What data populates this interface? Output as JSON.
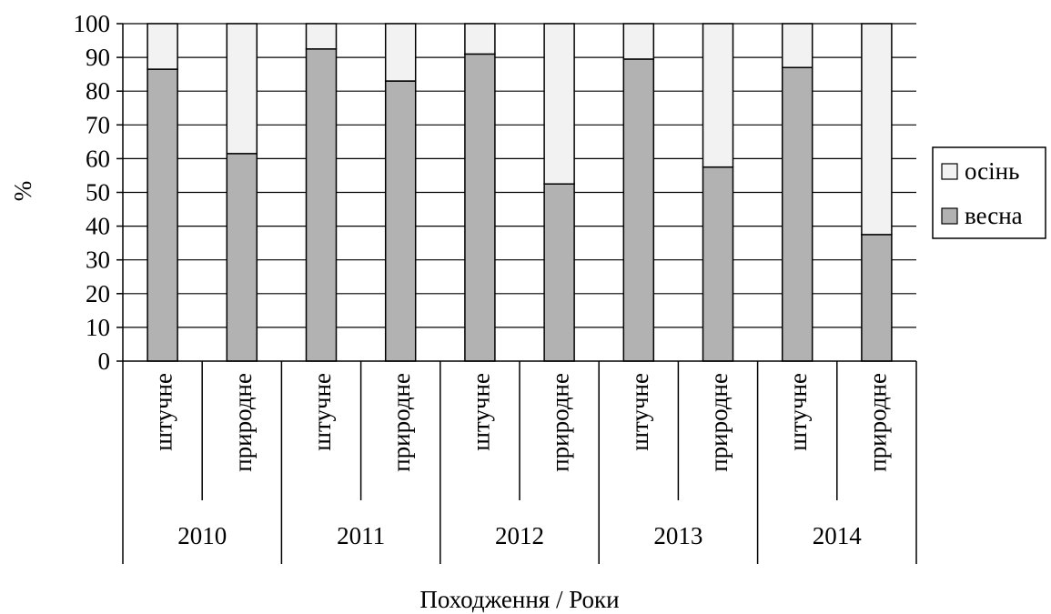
{
  "chart_data": {
    "type": "bar",
    "stacked": true,
    "orientation": "vertical",
    "groups": [
      "2010",
      "2011",
      "2012",
      "2013",
      "2014"
    ],
    "subcategories": [
      "штучне",
      "природне"
    ],
    "categories": [
      "2010 штучне",
      "2010 природне",
      "2011 штучне",
      "2011 природне",
      "2012 штучне",
      "2012 природне",
      "2013 штучне",
      "2013 природне",
      "2014 штучне",
      "2014 природне"
    ],
    "series": [
      {
        "name": "весна",
        "color": "#b2b2b2",
        "values": [
          86.5,
          61.5,
          92.5,
          83,
          91,
          52.5,
          89.5,
          57.5,
          87,
          37.5
        ]
      },
      {
        "name": "осінь",
        "color": "#f2f2f2",
        "values": [
          13.5,
          38.5,
          7.5,
          17,
          9,
          47.5,
          10.5,
          42.5,
          13,
          62.5
        ]
      }
    ],
    "xlabel": "Походження / Роки",
    "ylabel": "%",
    "ylim": [
      0,
      100
    ],
    "yticks": [
      0,
      10,
      20,
      30,
      40,
      50,
      60,
      70,
      80,
      90,
      100
    ],
    "grid": true,
    "legend": {
      "position": "right",
      "entries": [
        "осінь",
        "весна"
      ]
    }
  }
}
